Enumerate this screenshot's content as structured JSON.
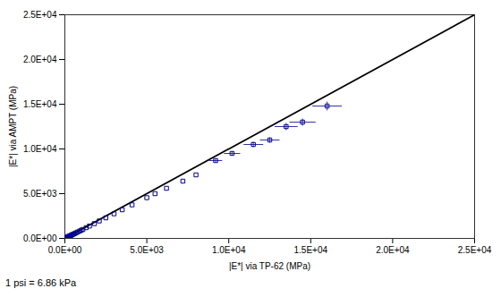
{
  "chart_data": {
    "type": "scatter",
    "xlabel": "|E*| via TP-62 (MPa)",
    "ylabel": "|E*| via AMPT (MPa)",
    "footnote": "1 psi = 6.86 kPa",
    "xlim": [
      0,
      25000
    ],
    "ylim": [
      0,
      25000
    ],
    "xticks": [
      {
        "value": 0,
        "label": "0.0E+00"
      },
      {
        "value": 5000,
        "label": "5.0E+03"
      },
      {
        "value": 10000,
        "label": "1.0E+04"
      },
      {
        "value": 15000,
        "label": "1.5E+04"
      },
      {
        "value": 20000,
        "label": "2.0E+04"
      },
      {
        "value": 25000,
        "label": "2.5E+04"
      }
    ],
    "yticks": [
      {
        "value": 0,
        "label": "0.0E+00"
      },
      {
        "value": 5000,
        "label": "5.0E+03"
      },
      {
        "value": 10000,
        "label": "1.0E+04"
      },
      {
        "value": 15000,
        "label": "1.5E+04"
      },
      {
        "value": 20000,
        "label": "2.0E+04"
      },
      {
        "value": 25000,
        "label": "2.5E+04"
      }
    ],
    "grid": false,
    "series": [
      {
        "type": "line",
        "color": "#000000",
        "x": [
          0,
          25000
        ],
        "values": [
          0,
          25000
        ]
      },
      {
        "type": "scatter",
        "color": "#00008b",
        "marker": "square",
        "x": [
          60,
          80,
          110,
          130,
          160,
          180,
          210,
          240,
          270,
          310,
          350,
          400,
          450,
          520,
          600,
          680,
          780,
          900,
          1000,
          1100,
          1300,
          1500,
          1800,
          2100,
          2500,
          3000,
          3500,
          4100,
          5000,
          5500,
          6200,
          7200,
          8000,
          9200,
          10200,
          11500,
          12500,
          13500,
          14500,
          16000
        ],
        "values": [
          55,
          75,
          100,
          120,
          148,
          165,
          190,
          220,
          248,
          285,
          320,
          365,
          415,
          475,
          545,
          625,
          715,
          820,
          915,
          1000,
          1200,
          1380,
          1650,
          1950,
          2300,
          2750,
          3200,
          3750,
          4550,
          5000,
          5600,
          6400,
          7100,
          8700,
          9500,
          10500,
          11000,
          12500,
          13000,
          14800
        ],
        "xerr": [
          0,
          0,
          0,
          0,
          0,
          0,
          0,
          0,
          0,
          0,
          0,
          0,
          0,
          0,
          0,
          0,
          0,
          0,
          0,
          0,
          0,
          0,
          0,
          0,
          0,
          0,
          0,
          0,
          0,
          0,
          0,
          0,
          0,
          400,
          500,
          600,
          600,
          700,
          800,
          900
        ],
        "yerr": [
          0,
          0,
          0,
          0,
          0,
          0,
          0,
          0,
          0,
          0,
          0,
          0,
          0,
          0,
          0,
          0,
          0,
          0,
          0,
          0,
          0,
          0,
          0,
          0,
          0,
          0,
          0,
          0,
          0,
          0,
          0,
          0,
          0,
          200,
          250,
          300,
          300,
          400,
          400,
          500
        ]
      }
    ]
  }
}
